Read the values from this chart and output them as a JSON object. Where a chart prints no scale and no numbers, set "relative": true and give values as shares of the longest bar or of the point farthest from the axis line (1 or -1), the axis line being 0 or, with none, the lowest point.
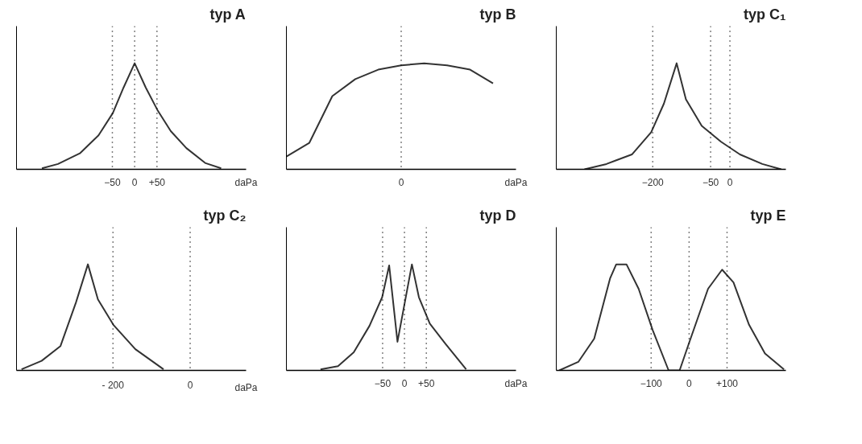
{
  "chart_data": [
    {
      "type": "line",
      "title": "typ A",
      "xlabel": "daPa",
      "relative": true,
      "tick_labels": "x",
      "grid": false,
      "xlim": [
        -265,
        250
      ],
      "xticks": [
        -50,
        0,
        {
          "value": 50,
          "label": "+50"
        }
      ],
      "x": [
        -208,
        -172,
        -123,
        -81,
        -49,
        -25,
        0,
        25,
        51,
        81,
        116,
        158,
        194
      ],
      "series": [
        {
          "color": "#333333",
          "values": [
            0.01,
            0.05,
            0.15,
            0.32,
            0.53,
            0.77,
            1,
            0.77,
            0.56,
            0.36,
            0.2,
            0.06,
            0.01
          ]
        }
      ],
      "ref_lines": [
        {
          "axis": "x",
          "value": -50,
          "line_style": "dotted",
          "color": "#000000"
        },
        {
          "axis": "x",
          "value": 0,
          "line_style": "dotted",
          "color": "#000000"
        },
        {
          "axis": "x",
          "value": 50,
          "line_style": "dotted",
          "color": "#000000"
        }
      ]
    },
    {
      "type": "line",
      "title": "typ B",
      "xlabel": "daPa",
      "relative": true,
      "tick_labels": "x",
      "grid": false,
      "annotations": [
        "0"
      ],
      "categories": [
        null,
        null,
        null,
        null,
        null,
        null,
        null,
        null,
        null,
        null,
        null
      ],
      "series": [
        {
          "color": "#333333",
          "values": [
            0.12,
            0.25,
            0.69,
            0.85,
            0.94,
            0.98,
            1,
            0.98,
            0.94,
            0.81,
            null
          ]
        }
      ]
    },
    {
      "type": "line",
      "title": "typ C₁",
      "relative": true,
      "tick_labels": "x",
      "grid": false,
      "xlim": [
        -450,
        145
      ],
      "xticks": [
        -200,
        -50,
        0
      ],
      "x": [
        -377,
        -320,
        -254,
        -204,
        -171,
        -138,
        -114,
        -73,
        -23,
        26,
        84,
        133
      ],
      "series": [
        {
          "color": "#333333",
          "values": [
            0,
            0.05,
            0.14,
            0.35,
            0.62,
            1,
            0.66,
            0.41,
            0.26,
            0.14,
            0.05,
            0
          ]
        }
      ],
      "ref_lines": [
        {
          "axis": "x",
          "value": -200,
          "line_style": "dotted",
          "color": "#000000"
        },
        {
          "axis": "x",
          "value": -50,
          "line_style": "dotted",
          "color": "#000000"
        },
        {
          "axis": "x",
          "value": 0,
          "line_style": "dotted",
          "color": "#000000"
        }
      ]
    },
    {
      "type": "line",
      "title": "typ C₂",
      "xlabel": "daPa",
      "relative": true,
      "tick_labels": "x",
      "grid": false,
      "xlim": [
        -450,
        145
      ],
      "xticks": [
        {
          "value": -200,
          "label": "- 200"
        },
        0
      ],
      "x": [
        -437,
        -385,
        -336,
        -296,
        -265,
        -239,
        -199,
        -142,
        -69
      ],
      "series": [
        {
          "color": "#333333",
          "values": [
            0.01,
            0.09,
            0.23,
            0.64,
            1,
            0.67,
            0.43,
            0.2,
            0.01
          ]
        }
      ],
      "ref_lines": [
        {
          "axis": "x",
          "value": -200,
          "line_style": "dotted",
          "color": "#000000"
        },
        {
          "axis": "x",
          "value": 0,
          "line_style": "dotted",
          "color": "#000000"
        }
      ]
    },
    {
      "type": "line",
      "title": "typ D",
      "xlabel": "daPa",
      "relative": true,
      "tick_labels": "x",
      "grid": false,
      "xlim": [
        -270,
        255
      ],
      "xticks": [
        -50,
        0,
        {
          "value": 50,
          "label": "+50"
        }
      ],
      "x": [
        -192,
        -152,
        -116,
        -80,
        -51,
        -35,
        -16,
        17,
        33,
        58,
        94,
        141
      ],
      "series": [
        {
          "color": "#333333",
          "values": [
            0.01,
            0.04,
            0.17,
            0.42,
            0.69,
            0.99,
            0.27,
            1,
            0.69,
            0.44,
            0.25,
            0.01
          ]
        }
      ],
      "ref_lines": [
        {
          "axis": "x",
          "value": -50,
          "line_style": "dotted",
          "color": "#000000"
        },
        {
          "axis": "x",
          "value": 0,
          "line_style": "dotted",
          "color": "#000000"
        },
        {
          "axis": "x",
          "value": 50,
          "line_style": "dotted",
          "color": "#000000"
        }
      ]
    },
    {
      "type": "line",
      "title": "typ E",
      "relative": true,
      "tick_labels": "x",
      "grid": false,
      "xlim": [
        -350,
        255
      ],
      "xticks": [
        -100,
        0,
        {
          "value": 100,
          "label": "+100"
        }
      ],
      "x": [
        -342,
        -292,
        -250,
        -208,
        -192,
        -165,
        -133,
        -96,
        -54,
        -25,
        0,
        50,
        87,
        117,
        158,
        200,
        250
      ],
      "series": [
        {
          "color": "#333333",
          "values": [
            0,
            0.08,
            0.3,
            0.87,
            1,
            1,
            0.77,
            0.38,
            0,
            0,
            0.26,
            0.77,
            0.95,
            0.83,
            0.43,
            0.16,
            0.01
          ]
        }
      ],
      "ref_lines": [
        {
          "axis": "x",
          "value": -100,
          "line_style": "dotted",
          "color": "#000000"
        },
        {
          "axis": "x",
          "value": 0,
          "line_style": "dotted",
          "color": "#000000"
        },
        {
          "axis": "x",
          "value": 100,
          "line_style": "dotted",
          "color": "#000000"
        }
      ]
    }
  ]
}
